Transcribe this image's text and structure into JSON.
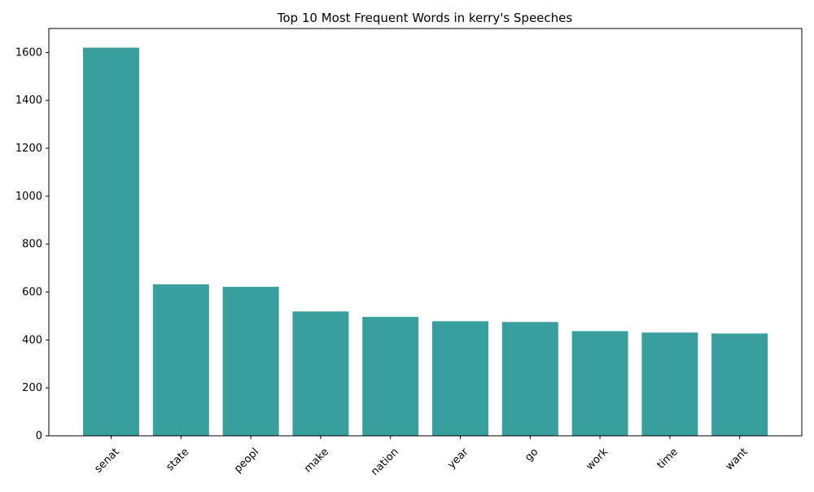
{
  "chart_data": {
    "type": "bar",
    "title": "Top 10 Most Frequent Words in kerry's Speeches",
    "xlabel": "",
    "ylabel": "",
    "categories": [
      "senat",
      "state",
      "peopl",
      "make",
      "nation",
      "year",
      "go",
      "work",
      "time",
      "want"
    ],
    "values": [
      1620,
      632,
      622,
      519,
      496,
      478,
      475,
      437,
      431,
      427
    ],
    "ylim": [
      0,
      1700
    ],
    "yticks": [
      0,
      200,
      400,
      600,
      800,
      1000,
      1200,
      1400,
      1600
    ],
    "ytick_labels": [
      "0",
      "200",
      "400",
      "600",
      "800",
      "1000",
      "1200",
      "1400",
      "1600"
    ],
    "bar_color": "#3a9e9e",
    "grid": false,
    "legend": "none"
  }
}
